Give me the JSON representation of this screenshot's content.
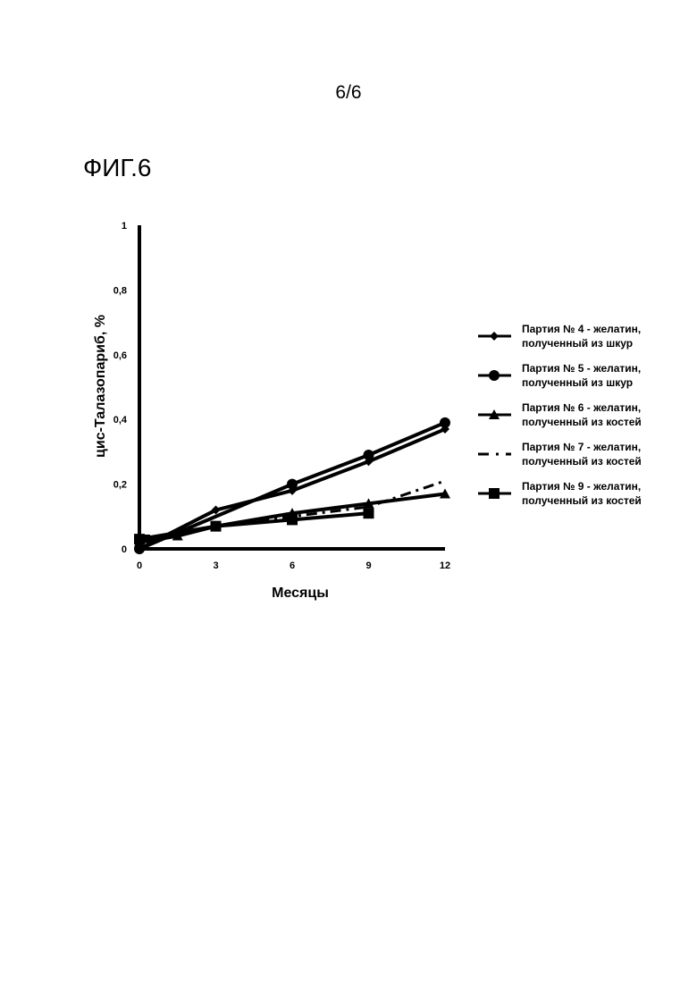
{
  "page": {
    "number": "6/6",
    "figure_label": "ФИГ.6"
  },
  "chart_data": {
    "type": "line",
    "xlabel": "Месяцы",
    "ylabel": "цис-Талазопариб, %",
    "xlim": [
      0,
      12
    ],
    "ylim": [
      0,
      1
    ],
    "xticks": [
      "0",
      "3",
      "6",
      "9",
      "12"
    ],
    "yticks": [
      "0",
      "0,2",
      "0,4",
      "0,6",
      "0,8",
      "1"
    ],
    "grid": false,
    "legend_position": "right",
    "series": [
      {
        "name_line1": "Партия № 4 - желатин,",
        "name_line2": "полученный из шкур",
        "marker": "diamond",
        "style": "solid",
        "color": "#000000",
        "x": [
          0,
          3,
          6,
          9,
          12
        ],
        "y": [
          0.0,
          0.12,
          0.18,
          0.27,
          0.37
        ]
      },
      {
        "name_line1": "Партия № 5 - желатин,",
        "name_line2": "полученный из шкур",
        "marker": "circle",
        "style": "solid",
        "color": "#000000",
        "x": [
          0,
          6,
          9,
          12
        ],
        "y": [
          0.0,
          0.2,
          0.29,
          0.39
        ]
      },
      {
        "name_line1": "Партия № 6 - желатин,",
        "name_line2": "полученный из костей",
        "marker": "triangle",
        "style": "solid",
        "color": "#000000",
        "x": [
          0,
          1.5,
          3,
          6,
          9,
          12
        ],
        "y": [
          0.02,
          0.04,
          0.07,
          0.11,
          0.14,
          0.17
        ]
      },
      {
        "name_line1": "Партия № 7 - желатин,",
        "name_line2": "полученный из костей",
        "marker": "none",
        "style": "dashdot",
        "color": "#000000",
        "x": [
          0,
          1.5,
          3,
          6,
          9,
          12
        ],
        "y": [
          0.04,
          0.04,
          0.07,
          0.1,
          0.13,
          0.21
        ]
      },
      {
        "name_line1": "Партия № 9 - желатин,",
        "name_line2": "полученный из костей",
        "marker": "square",
        "style": "solid",
        "color": "#000000",
        "x": [
          0,
          3,
          6,
          9
        ],
        "y": [
          0.03,
          0.07,
          0.09,
          0.11
        ]
      }
    ]
  }
}
